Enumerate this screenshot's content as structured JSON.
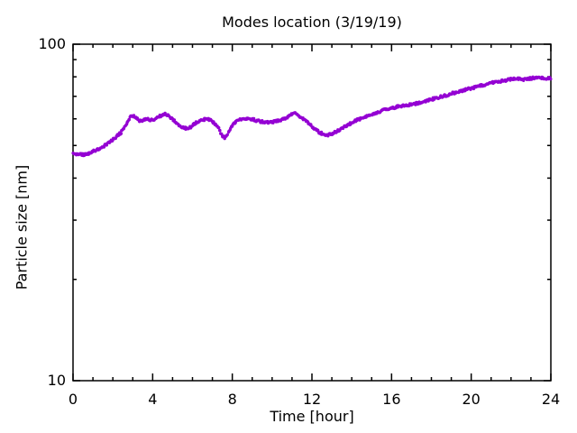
{
  "chart_data": {
    "type": "scatter",
    "title": "Modes location (3/19/19)",
    "xlabel": "Time [hour]",
    "ylabel": "Particle size [nm]",
    "xlim": [
      0,
      24
    ],
    "ylim": [
      10,
      100
    ],
    "yscale": "log",
    "grid": false,
    "legend": null,
    "x_major_ticks": [
      0,
      4,
      8,
      12,
      16,
      20,
      24
    ],
    "x_minor_step": 1,
    "y_major_ticks": [
      10,
      100
    ],
    "y_minor_ticks": [
      20,
      30,
      40,
      50,
      60,
      70,
      80,
      90
    ],
    "colors": {
      "points": "#9400d3",
      "axis": "#000000",
      "background": "#ffffff"
    },
    "series": [
      {
        "name": "mode-location",
        "marker": "dot",
        "color": "#9400d3",
        "points": [
          [
            0.0,
            47.4
          ],
          [
            0.3,
            47.0
          ],
          [
            0.6,
            46.9
          ],
          [
            0.9,
            47.6
          ],
          [
            1.2,
            48.6
          ],
          [
            1.5,
            49.6
          ],
          [
            1.8,
            51.0
          ],
          [
            2.1,
            52.6
          ],
          [
            2.4,
            54.5
          ],
          [
            2.7,
            58.0
          ],
          [
            2.9,
            60.8
          ],
          [
            3.05,
            61.4
          ],
          [
            3.2,
            60.2
          ],
          [
            3.35,
            59.0
          ],
          [
            3.5,
            59.6
          ],
          [
            3.7,
            60.1
          ],
          [
            3.9,
            59.4
          ],
          [
            4.1,
            59.8
          ],
          [
            4.3,
            60.7
          ],
          [
            4.5,
            61.7
          ],
          [
            4.65,
            62.0
          ],
          [
            4.8,
            61.2
          ],
          [
            5.0,
            60.0
          ],
          [
            5.2,
            58.3
          ],
          [
            5.45,
            56.9
          ],
          [
            5.7,
            56.2
          ],
          [
            5.9,
            56.6
          ],
          [
            6.1,
            57.9
          ],
          [
            6.3,
            59.0
          ],
          [
            6.5,
            59.6
          ],
          [
            6.7,
            59.9
          ],
          [
            6.9,
            59.5
          ],
          [
            7.1,
            58.3
          ],
          [
            7.3,
            56.3
          ],
          [
            7.5,
            53.2
          ],
          [
            7.65,
            52.8
          ],
          [
            7.8,
            54.6
          ],
          [
            8.0,
            57.1
          ],
          [
            8.2,
            59.2
          ],
          [
            8.4,
            59.9
          ],
          [
            8.6,
            60.1
          ],
          [
            8.8,
            60.3
          ],
          [
            9.0,
            59.8
          ],
          [
            9.2,
            59.3
          ],
          [
            9.5,
            58.8
          ],
          [
            9.8,
            58.5
          ],
          [
            10.1,
            58.8
          ],
          [
            10.4,
            59.4
          ],
          [
            10.7,
            60.5
          ],
          [
            11.0,
            61.9
          ],
          [
            11.15,
            62.5
          ],
          [
            11.3,
            61.6
          ],
          [
            11.5,
            60.4
          ],
          [
            11.7,
            59.1
          ],
          [
            11.9,
            57.6
          ],
          [
            12.1,
            56.2
          ],
          [
            12.35,
            54.8
          ],
          [
            12.6,
            53.9
          ],
          [
            12.85,
            53.8
          ],
          [
            13.1,
            54.5
          ],
          [
            13.35,
            55.5
          ],
          [
            13.6,
            56.7
          ],
          [
            13.85,
            57.8
          ],
          [
            14.1,
            58.9
          ],
          [
            14.35,
            59.8
          ],
          [
            14.6,
            60.7
          ],
          [
            14.85,
            61.4
          ],
          [
            15.1,
            62.2
          ],
          [
            15.4,
            63.1
          ],
          [
            15.7,
            63.9
          ],
          [
            16.0,
            64.6
          ],
          [
            16.3,
            65.2
          ],
          [
            16.6,
            65.6
          ],
          [
            16.9,
            66.1
          ],
          [
            17.2,
            66.6
          ],
          [
            17.5,
            67.2
          ],
          [
            17.8,
            67.9
          ],
          [
            18.1,
            68.8
          ],
          [
            18.4,
            69.6
          ],
          [
            18.7,
            70.4
          ],
          [
            19.0,
            71.3
          ],
          [
            19.3,
            72.1
          ],
          [
            19.6,
            72.9
          ],
          [
            19.9,
            73.7
          ],
          [
            20.2,
            74.5
          ],
          [
            20.5,
            75.3
          ],
          [
            20.8,
            76.1
          ],
          [
            21.1,
            76.9
          ],
          [
            21.4,
            77.5
          ],
          [
            21.7,
            78.1
          ],
          [
            22.0,
            78.7
          ],
          [
            22.2,
            79.0
          ],
          [
            22.45,
            78.8
          ],
          [
            22.7,
            78.5
          ],
          [
            22.9,
            79.0
          ],
          [
            23.1,
            79.4
          ],
          [
            23.35,
            79.5
          ],
          [
            23.6,
            79.2
          ],
          [
            23.8,
            79.1
          ],
          [
            24.0,
            79.4
          ]
        ]
      }
    ]
  }
}
